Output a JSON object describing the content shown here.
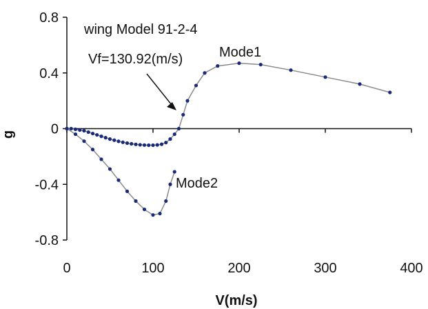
{
  "chart_data": {
    "type": "scatter",
    "xlabel": "V(m/s)",
    "ylabel": "g",
    "xlim": [
      0,
      400
    ],
    "ylim": [
      -0.8,
      0.8
    ],
    "x_ticks": [
      "0",
      "100",
      "200",
      "300",
      "400"
    ],
    "y_ticks": [
      "0.8",
      "0.4",
      "0",
      "-0.4",
      "-0.8"
    ],
    "grid": false,
    "colors": {
      "series": "#1a2a7a",
      "line": "#8a8a8a",
      "axis": "#111111"
    },
    "annotations": {
      "model": "wing Model 91-2-4",
      "flutter_speed": "Vf=130.92(m/s)",
      "mode1_label": "Mode1",
      "mode2_label": "Mode2"
    },
    "series": [
      {
        "name": "Mode1",
        "x": [
          0,
          5,
          10,
          15,
          20,
          25,
          30,
          35,
          40,
          45,
          50,
          55,
          60,
          65,
          70,
          75,
          80,
          85,
          90,
          95,
          100,
          105,
          110,
          115,
          120,
          125,
          130,
          135,
          140,
          150,
          160,
          175,
          200,
          225,
          260,
          300,
          340,
          375
        ],
        "y": [
          0,
          0,
          -0.005,
          -0.01,
          -0.015,
          -0.025,
          -0.035,
          -0.045,
          -0.055,
          -0.065,
          -0.075,
          -0.083,
          -0.091,
          -0.098,
          -0.104,
          -0.109,
          -0.113,
          -0.116,
          -0.118,
          -0.119,
          -0.119,
          -0.117,
          -0.112,
          -0.1,
          -0.075,
          -0.04,
          0.0,
          0.1,
          0.2,
          0.31,
          0.4,
          0.45,
          0.47,
          0.46,
          0.42,
          0.37,
          0.32,
          0.26
        ]
      },
      {
        "name": "Mode2",
        "x": [
          0,
          10,
          20,
          30,
          40,
          50,
          60,
          70,
          80,
          90,
          100,
          108,
          115,
          120,
          125
        ],
        "y": [
          0,
          -0.04,
          -0.09,
          -0.15,
          -0.22,
          -0.29,
          -0.37,
          -0.45,
          -0.52,
          -0.58,
          -0.62,
          -0.61,
          -0.52,
          -0.4,
          -0.31
        ]
      }
    ]
  }
}
